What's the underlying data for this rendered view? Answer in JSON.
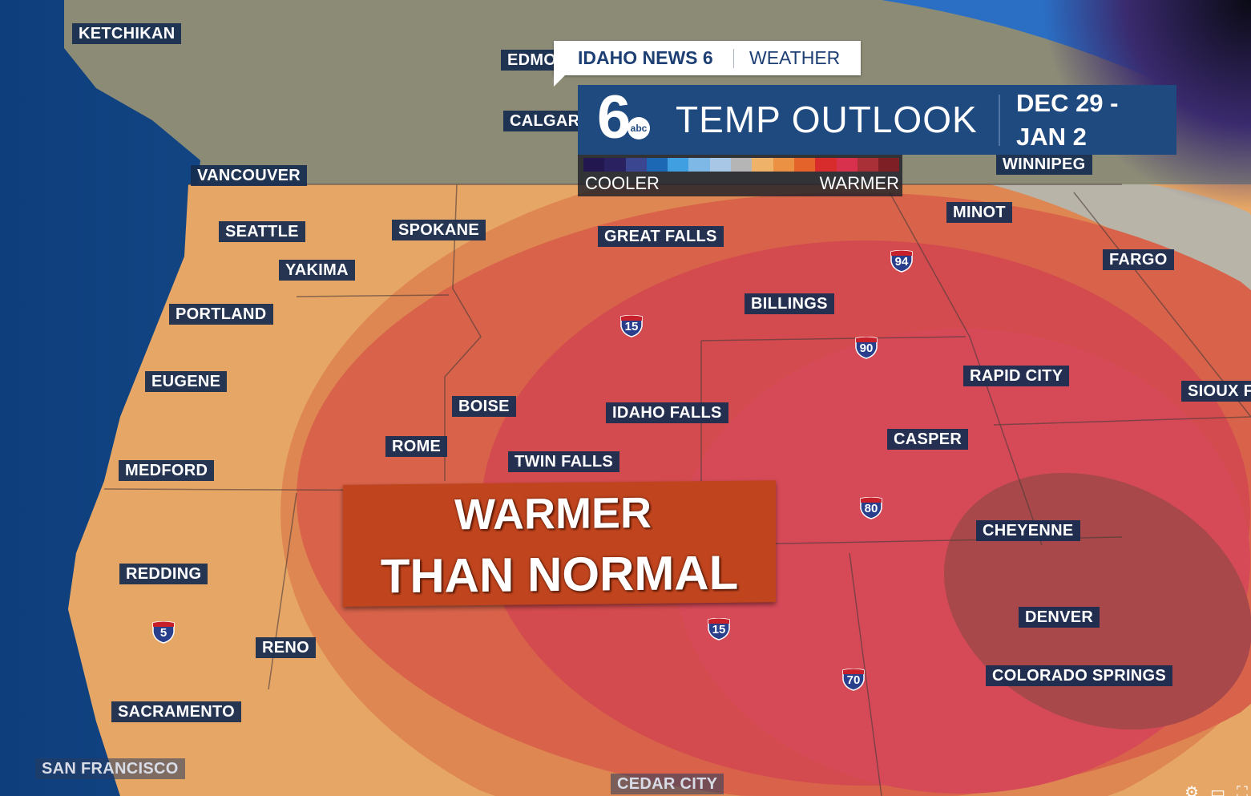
{
  "branding": {
    "station": "IDAHO NEWS 6",
    "section": "WEATHER",
    "logo_text": "6abc"
  },
  "header": {
    "title": "TEMP OUTLOOK",
    "date_line1": "DEC 29 -",
    "date_line2": "JAN 2"
  },
  "legend": {
    "low_label": "COOLER",
    "high_label": "WARMER",
    "colors": [
      "#22184f",
      "#2a2260",
      "#3a4790",
      "#1c68b4",
      "#3f9fe0",
      "#7db8e6",
      "#a8c6e6",
      "#b5b5b5",
      "#eeb268",
      "#eb9143",
      "#e4632a",
      "#d82b2b",
      "#d8314e",
      "#a83036",
      "#7e1f26"
    ]
  },
  "banner": {
    "line1": "WARMER",
    "line2": "THAN NORMAL",
    "color": "#c0451f"
  },
  "map": {
    "zone_colors": {
      "ocean": "#1a4f90",
      "land_neutral": "#8c8b76",
      "slight_warm": "#e6a766",
      "warm": "#df8752",
      "warmer": "#d8634a",
      "much_warmer": "#d44b4f",
      "warmest": "#a8484a"
    },
    "cities": [
      "KETCHIKAN",
      "EDMONTON",
      "CALGARY",
      "VANCOUVER",
      "SEATTLE",
      "YAKIMA",
      "SPOKANE",
      "GREAT FALLS",
      "MINOT",
      "WINNIPEG",
      "FARGO",
      "BILLINGS",
      "PORTLAND",
      "RAPID CITY",
      "SIOUX FALLS",
      "EUGENE",
      "BOISE",
      "IDAHO FALLS",
      "CASPER",
      "ROME",
      "TWIN FALLS",
      "MEDFORD",
      "CHEYENNE",
      "REDDING",
      "DENVER",
      "RENO",
      "COLORADO SPRINGS",
      "SACRAMENTO",
      "SAN FRANCISCO",
      "CEDAR CITY"
    ],
    "interstates": [
      "94",
      "15",
      "90",
      "80",
      "15",
      "70",
      "5"
    ]
  },
  "player_controls": [
    "settings-icon",
    "picture-in-picture-icon",
    "fullscreen-icon"
  ]
}
